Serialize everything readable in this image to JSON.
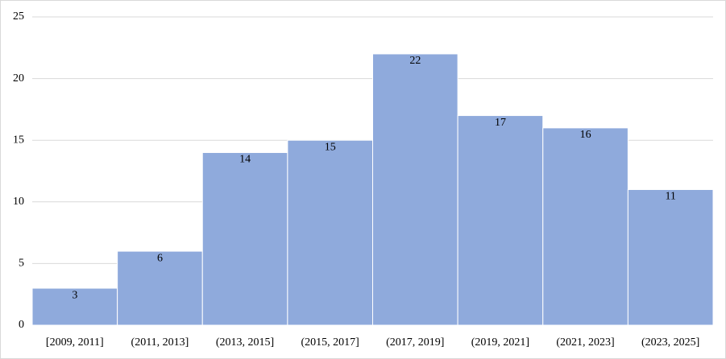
{
  "chart_data": {
    "type": "bar",
    "categories": [
      "[2009, 2011]",
      "(2011, 2013]",
      "(2013, 2015]",
      "(2015, 2017]",
      "(2017, 2019]",
      "(2019, 2021]",
      "(2021, 2023]",
      "(2023, 2025]"
    ],
    "values": [
      3,
      6,
      14,
      15,
      22,
      17,
      16,
      11
    ],
    "color": "#8faadc",
    "ylim": [
      0,
      25
    ],
    "yticks": [
      0,
      5,
      10,
      15,
      20,
      25
    ],
    "grid": true
  }
}
